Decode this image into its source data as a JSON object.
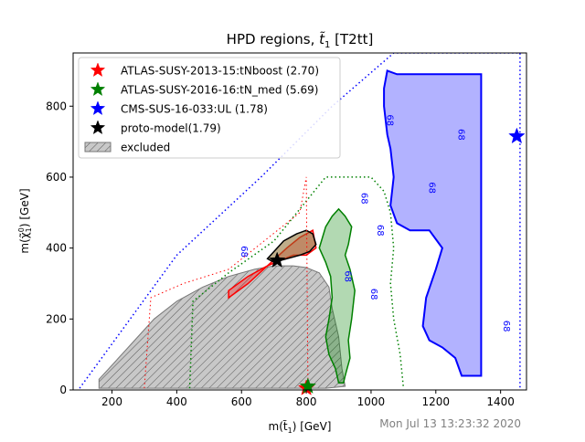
{
  "chart_data": {
    "type": "area",
    "title": "HPD regions, t̃1 [T2tt]",
    "title_main": "HPD regions, ",
    "title_var": "t̃",
    "title_sub": "1",
    "title_tail": " [T2tt]",
    "xlabel_main": "m(t̃",
    "xlabel_sub": "1",
    "xlabel_tail": ") [GeV]",
    "ylabel_main": "m(χ̃",
    "ylabel_sub": "1",
    "ylabel_sup": "0",
    "ylabel_tail": ") [GeV]",
    "xlim": [
      80,
      1480
    ],
    "ylim": [
      0,
      950
    ],
    "xticks": [
      "200",
      "400",
      "600",
      "800",
      "1000",
      "1200",
      "1400"
    ],
    "yticks": [
      "0",
      "200",
      "400",
      "600",
      "800"
    ],
    "timestamp": "Mon Jul 13 13:23:32 2020",
    "contour_label": "68",
    "colors": {
      "atlas_2013": "#ff0000",
      "atlas_2016": "#008000",
      "cms": "#0000ff",
      "proto": "#000000",
      "excluded": "#c8c8c8"
    },
    "legend": [
      {
        "label": "ATLAS-SUSY-2013-15:tNboost (2.70)",
        "marker": "star",
        "color": "#ff0000"
      },
      {
        "label": "ATLAS-SUSY-2016-16:tN_med (5.69)",
        "marker": "star",
        "color": "#008000"
      },
      {
        "label": "CMS-SUS-16-033:UL (1.78)",
        "marker": "star",
        "color": "#0000ff"
      },
      {
        "label": "proto-model(1.79)",
        "marker": "star",
        "color": "#000000"
      },
      {
        "label": "excluded",
        "marker": "hatch",
        "color": "#c8c8c8"
      }
    ],
    "points": [
      {
        "name": "ATLAS-SUSY-2013-15 best fit",
        "x": 800,
        "y": 5,
        "color": "#ff0000"
      },
      {
        "name": "ATLAS-SUSY-2016-16 best fit",
        "x": 805,
        "y": 10,
        "color": "#008000"
      },
      {
        "name": "CMS-SUS-16-033 best fit",
        "x": 1450,
        "y": 715,
        "color": "#0000ff"
      },
      {
        "name": "proto-model",
        "x": 710,
        "y": 365,
        "color": "#000000"
      }
    ],
    "regions": {
      "excluded": [
        [
          160,
          30
        ],
        [
          190,
          60
        ],
        [
          260,
          130
        ],
        [
          330,
          200
        ],
        [
          400,
          250
        ],
        [
          480,
          290
        ],
        [
          560,
          320
        ],
        [
          640,
          340
        ],
        [
          700,
          350
        ],
        [
          760,
          350
        ],
        [
          800,
          345
        ],
        [
          840,
          330
        ],
        [
          870,
          290
        ],
        [
          880,
          230
        ],
        [
          900,
          150
        ],
        [
          910,
          60
        ],
        [
          920,
          10
        ],
        [
          860,
          5
        ],
        [
          300,
          5
        ],
        [
          160,
          5
        ]
      ],
      "red": [
        [
          560,
          260
        ],
        [
          620,
          300
        ],
        [
          680,
          350
        ],
        [
          740,
          400
        ],
        [
          780,
          430
        ],
        [
          820,
          450
        ],
        [
          830,
          400
        ],
        [
          800,
          380
        ],
        [
          760,
          380
        ],
        [
          720,
          365
        ],
        [
          680,
          350
        ],
        [
          620,
          320
        ],
        [
          560,
          280
        ]
      ],
      "green": [
        [
          840,
          400
        ],
        [
          860,
          460
        ],
        [
          880,
          490
        ],
        [
          900,
          510
        ],
        [
          920,
          490
        ],
        [
          940,
          460
        ],
        [
          930,
          410
        ],
        [
          920,
          380
        ],
        [
          935,
          340
        ],
        [
          950,
          280
        ],
        [
          940,
          200
        ],
        [
          930,
          140
        ],
        [
          935,
          90
        ],
        [
          920,
          40
        ],
        [
          915,
          20
        ],
        [
          900,
          20
        ],
        [
          890,
          60
        ],
        [
          870,
          100
        ],
        [
          860,
          150
        ],
        [
          870,
          200
        ],
        [
          880,
          260
        ],
        [
          875,
          320
        ],
        [
          860,
          360
        ]
      ],
      "brown": [
        [
          680,
          370
        ],
        [
          700,
          390
        ],
        [
          730,
          420
        ],
        [
          770,
          440
        ],
        [
          800,
          450
        ],
        [
          820,
          440
        ],
        [
          830,
          410
        ],
        [
          810,
          390
        ],
        [
          780,
          380
        ],
        [
          740,
          370
        ],
        [
          700,
          360
        ]
      ],
      "blue": [
        [
          1050,
          900
        ],
        [
          1080,
          890
        ],
        [
          1140,
          890
        ],
        [
          1230,
          890
        ],
        [
          1300,
          890
        ],
        [
          1340,
          890
        ],
        [
          1340,
          40
        ],
        [
          1280,
          40
        ],
        [
          1260,
          90
        ],
        [
          1220,
          120
        ],
        [
          1180,
          140
        ],
        [
          1160,
          180
        ],
        [
          1170,
          260
        ],
        [
          1200,
          340
        ],
        [
          1220,
          400
        ],
        [
          1180,
          450
        ],
        [
          1120,
          450
        ],
        [
          1080,
          470
        ],
        [
          1060,
          520
        ],
        [
          1070,
          600
        ],
        [
          1060,
          680
        ],
        [
          1050,
          720
        ],
        [
          1040,
          800
        ],
        [
          1040,
          850
        ]
      ]
    },
    "dotted_bounds": {
      "blue_outer": [
        [
          100,
          5
        ],
        [
          400,
          380
        ],
        [
          660,
          600
        ],
        [
          880,
          800
        ],
        [
          1070,
          950
        ],
        [
          1460,
          950
        ],
        [
          1460,
          0
        ]
      ],
      "green_outer": [
        [
          440,
          5
        ],
        [
          450,
          250
        ],
        [
          560,
          330
        ],
        [
          700,
          420
        ],
        [
          860,
          600
        ],
        [
          1000,
          600
        ],
        [
          1040,
          560
        ],
        [
          1060,
          500
        ],
        [
          1070,
          400
        ],
        [
          1060,
          300
        ],
        [
          1070,
          200
        ],
        [
          1090,
          100
        ],
        [
          1100,
          5
        ]
      ],
      "red_outer": [
        [
          300,
          5
        ],
        [
          320,
          260
        ],
        [
          420,
          300
        ],
        [
          560,
          340
        ],
        [
          780,
          500
        ],
        [
          800,
          600
        ],
        [
          805,
          5
        ]
      ]
    }
  }
}
